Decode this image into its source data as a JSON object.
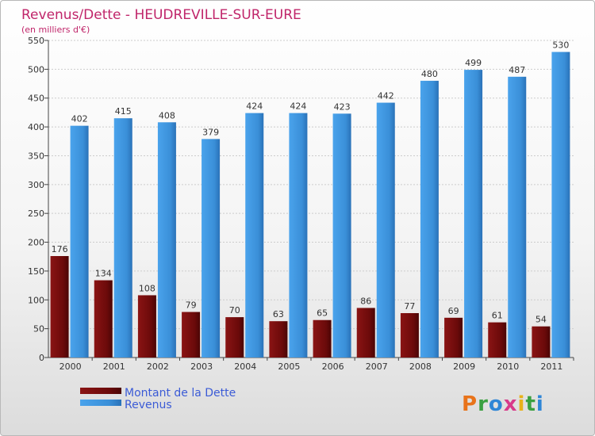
{
  "chart_data": {
    "type": "bar",
    "title": "Revenus/Dette - HEUDREVILLE-SUR-EURE",
    "subtitle": "(en milliers d'€)",
    "xlabel": "",
    "ylabel": "",
    "ylim": [
      0,
      550
    ],
    "yticks": [
      0,
      50,
      100,
      150,
      200,
      250,
      300,
      350,
      400,
      450,
      500,
      550
    ],
    "categories": [
      "2000",
      "2001",
      "2002",
      "2003",
      "2004",
      "2005",
      "2006",
      "2007",
      "2008",
      "2009",
      "2010",
      "2011"
    ],
    "series": [
      {
        "name": "Montant de la Dette",
        "values": [
          176,
          134,
          108,
          79,
          70,
          63,
          65,
          86,
          77,
          69,
          61,
          54
        ]
      },
      {
        "name": "Revenus",
        "values": [
          402,
          415,
          408,
          379,
          424,
          424,
          423,
          442,
          480,
          499,
          487,
          530
        ]
      }
    ],
    "legend": "bottom-left",
    "grid": true
  },
  "colors": {
    "dette": "#6b0a0a",
    "revenus": "#3a8fd8",
    "title": "#c0256a"
  },
  "brand": {
    "logo_letters": [
      "P",
      "r",
      "o",
      "x",
      "i",
      "t",
      "i"
    ],
    "logo_colors": [
      "#e8731a",
      "#3aa040",
      "#2f86d6",
      "#d83a8a",
      "#e8b21a",
      "#3aa040",
      "#2f86d6"
    ]
  }
}
